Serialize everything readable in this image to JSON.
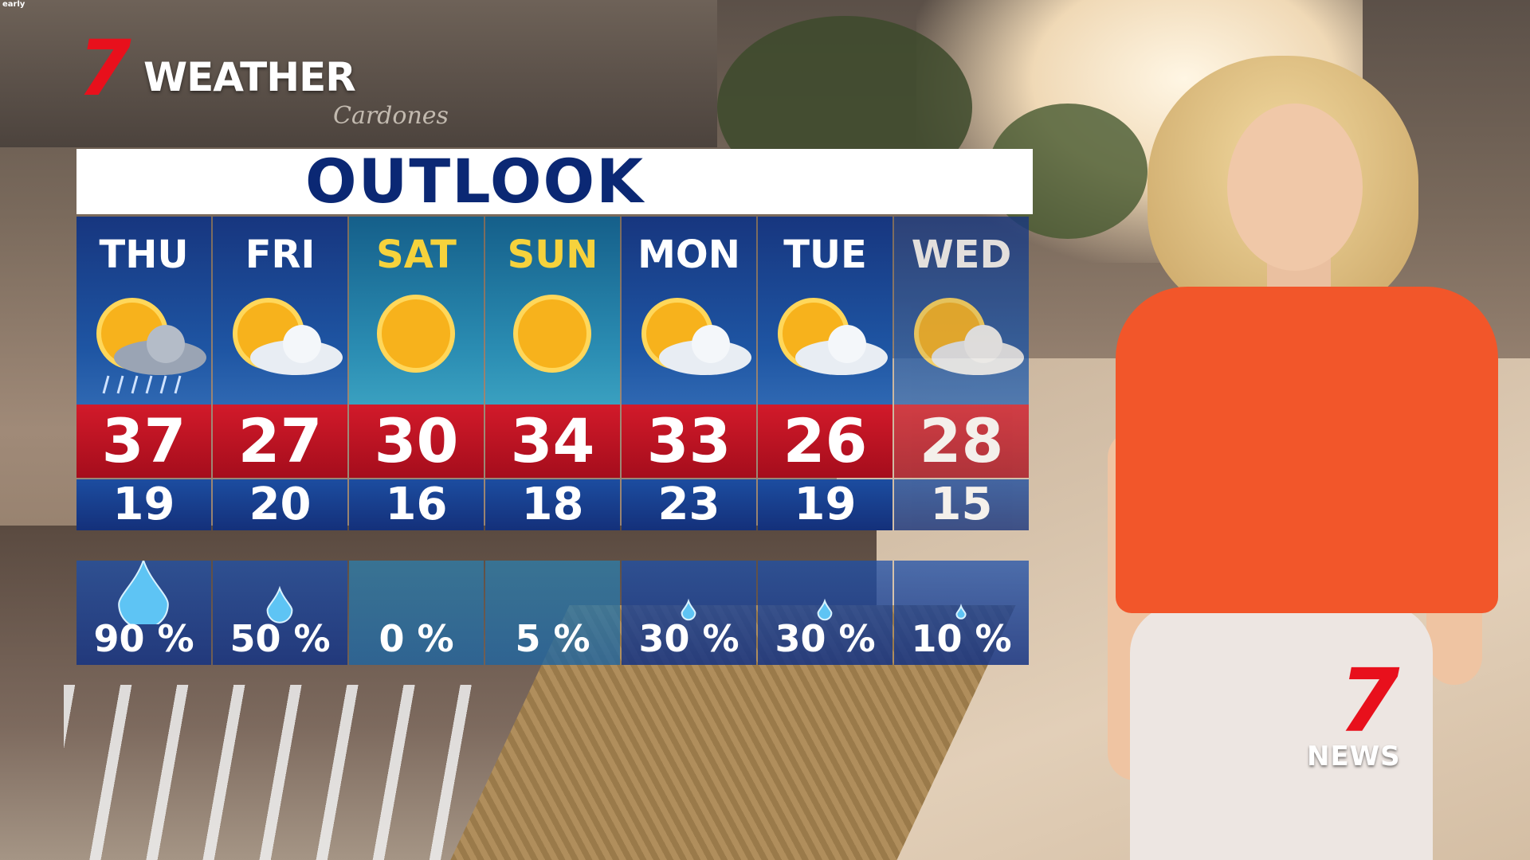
{
  "overlay_text": "early",
  "logo": {
    "number": "7",
    "label": "WEATHER"
  },
  "background_sign": "Cardones",
  "outlook": {
    "title": "OUTLOOK",
    "days": [
      {
        "day": "THU",
        "high": 37,
        "low": 19,
        "rain": "90 %"
      },
      {
        "day": "FRI",
        "high": 27,
        "low": 20,
        "rain": "50 %"
      },
      {
        "day": "SAT",
        "high": 30,
        "low": 16,
        "rain": "0 %"
      },
      {
        "day": "SUN",
        "high": 34,
        "low": 18,
        "rain": "5 %"
      },
      {
        "day": "MON",
        "high": 33,
        "low": 23,
        "rain": "30 %"
      },
      {
        "day": "TUE",
        "high": 26,
        "low": 19,
        "rain": "30 %"
      },
      {
        "day": "WED",
        "high": 28,
        "low": 15,
        "rain": "10 %"
      }
    ]
  },
  "news_logo": {
    "number": "7",
    "label": "NEWS"
  }
}
